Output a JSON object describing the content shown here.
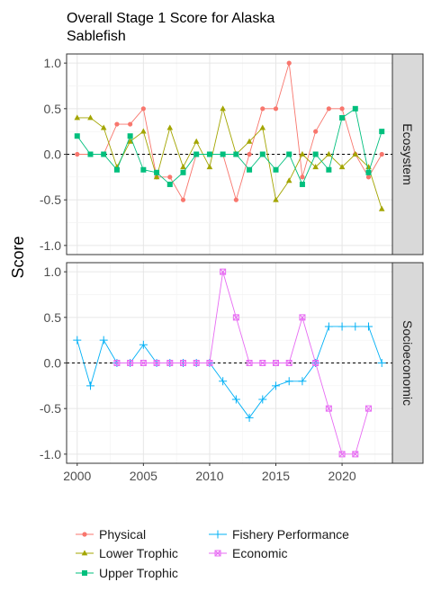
{
  "chart_data": {
    "type": "line",
    "title": "Overall Stage 1 Score for Alaska Sablefish",
    "title_lines": [
      "Overall Stage 1 Score for Alaska",
      "Sablefish"
    ],
    "xlabel": "",
    "ylabel": "Score",
    "xlim": [
      1999.2,
      2023.8
    ],
    "ylim": [
      -1.1,
      1.1
    ],
    "x_ticks": [
      2000,
      2005,
      2010,
      2015,
      2020
    ],
    "y_ticks": [
      -1.0,
      -0.5,
      0.0,
      0.5,
      1.0
    ],
    "y_tick_labels": [
      "-1.0",
      "-0.5",
      "0.0",
      "0.5",
      "1.0"
    ],
    "grid": true,
    "reference_line": 0,
    "legend_position": "bottom",
    "panels": [
      {
        "strip_label": "Ecosystem",
        "series": [
          {
            "name": "Physical",
            "color": "#F8766D",
            "marker": "circle",
            "x": [
              2000,
              2001,
              2002,
              2003,
              2004,
              2005,
              2006,
              2007,
              2008,
              2009,
              2010,
              2011,
              2012,
              2013,
              2014,
              2015,
              2016,
              2017,
              2018,
              2019,
              2020,
              2021,
              2022,
              2023
            ],
            "values": [
              0,
              0,
              0,
              0.33,
              0.33,
              0.5,
              -0.25,
              -0.25,
              -0.5,
              0,
              0,
              0,
              -0.5,
              0,
              0.5,
              0.5,
              1.0,
              -0.25,
              0.25,
              0.5,
              0.5,
              0,
              -0.25,
              0
            ]
          },
          {
            "name": "Lower Trophic",
            "color": "#A3A500",
            "marker": "triangle",
            "x": [
              2000,
              2001,
              2002,
              2003,
              2004,
              2005,
              2006,
              2007,
              2008,
              2009,
              2010,
              2011,
              2012,
              2013,
              2014,
              2015,
              2016,
              2017,
              2018,
              2019,
              2020,
              2021,
              2022,
              2023
            ],
            "values": [
              0.4,
              0.4,
              0.29,
              -0.14,
              0.14,
              0.25,
              -0.25,
              0.29,
              -0.14,
              0.14,
              -0.14,
              0.5,
              0,
              0.14,
              0.29,
              -0.5,
              -0.29,
              0,
              -0.14,
              0,
              -0.14,
              0,
              -0.14,
              -0.6
            ]
          },
          {
            "name": "Upper Trophic",
            "color": "#00BF7D",
            "marker": "square",
            "x": [
              2000,
              2001,
              2002,
              2003,
              2004,
              2005,
              2006,
              2007,
              2008,
              2009,
              2010,
              2011,
              2012,
              2013,
              2014,
              2015,
              2016,
              2017,
              2018,
              2019,
              2020,
              2021,
              2022,
              2023
            ],
            "values": [
              0.2,
              0,
              0,
              -0.17,
              0.2,
              -0.17,
              -0.2,
              -0.33,
              -0.2,
              0,
              0,
              0,
              0,
              -0.17,
              0,
              -0.17,
              0,
              -0.33,
              0,
              -0.17,
              0.4,
              0.5,
              -0.2,
              0.25
            ]
          }
        ]
      },
      {
        "strip_label": "Socioeconomic",
        "series": [
          {
            "name": "Fishery Performance",
            "color": "#00B0F6",
            "marker": "plus",
            "x": [
              2000,
              2001,
              2002,
              2003,
              2004,
              2005,
              2006,
              2007,
              2008,
              2009,
              2010,
              2011,
              2012,
              2013,
              2014,
              2015,
              2016,
              2017,
              2018,
              2019,
              2020,
              2021,
              2022,
              2023
            ],
            "values": [
              0.25,
              -0.25,
              0.25,
              0,
              0,
              0.2,
              0,
              0,
              0,
              0,
              0,
              -0.2,
              -0.4,
              -0.6,
              -0.4,
              -0.25,
              -0.2,
              -0.2,
              0,
              0.4,
              0.4,
              0.4,
              0.4,
              0
            ]
          },
          {
            "name": "Economic",
            "color": "#E76BF3",
            "marker": "square-x",
            "x": [
              2003,
              2004,
              2005,
              2006,
              2007,
              2008,
              2009,
              2010,
              2011,
              2012,
              2013,
              2014,
              2015,
              2016,
              2017,
              2018,
              2019,
              2020,
              2021,
              2022
            ],
            "values": [
              0,
              0,
              0,
              0,
              0,
              0,
              0,
              0,
              1.0,
              0.5,
              0,
              0,
              0,
              0,
              0.5,
              0,
              -0.5,
              -1.0,
              -1.0,
              -0.5
            ]
          }
        ]
      }
    ]
  }
}
